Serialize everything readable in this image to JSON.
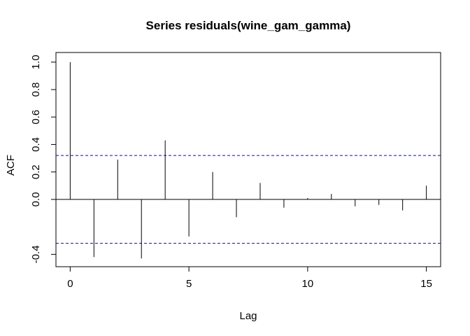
{
  "chart_data": {
    "type": "bar",
    "title": "Series  residuals(wine_gam_gamma)",
    "xlabel": "Lag",
    "ylabel": "ACF",
    "xlim": [
      -0.6,
      15.6
    ],
    "ylim": [
      -0.49,
      1.07
    ],
    "x": [
      0,
      1,
      2,
      3,
      4,
      5,
      6,
      7,
      8,
      9,
      10,
      11,
      12,
      13,
      14,
      15
    ],
    "values": [
      1.0,
      -0.42,
      0.29,
      -0.43,
      0.43,
      -0.27,
      0.2,
      -0.13,
      0.12,
      -0.06,
      0.01,
      0.04,
      -0.05,
      -0.04,
      -0.08,
      0.1
    ],
    "confidence_bounds": [
      0.32,
      -0.32
    ],
    "x_ticks": [
      0,
      5,
      10,
      15
    ],
    "y_ticks": [
      -0.4,
      0.0,
      0.2,
      0.4,
      0.6,
      0.8,
      1.0
    ],
    "x_tick_labels": [
      "0",
      "5",
      "10",
      "15"
    ],
    "y_tick_labels": [
      "-0.4",
      "0.0",
      "0.2",
      "0.4",
      "0.6",
      "0.8",
      "1.0"
    ],
    "grid": false,
    "colors": {
      "bars": "#000000",
      "confidence": "#0000ff",
      "zero_line": "#000000"
    }
  }
}
